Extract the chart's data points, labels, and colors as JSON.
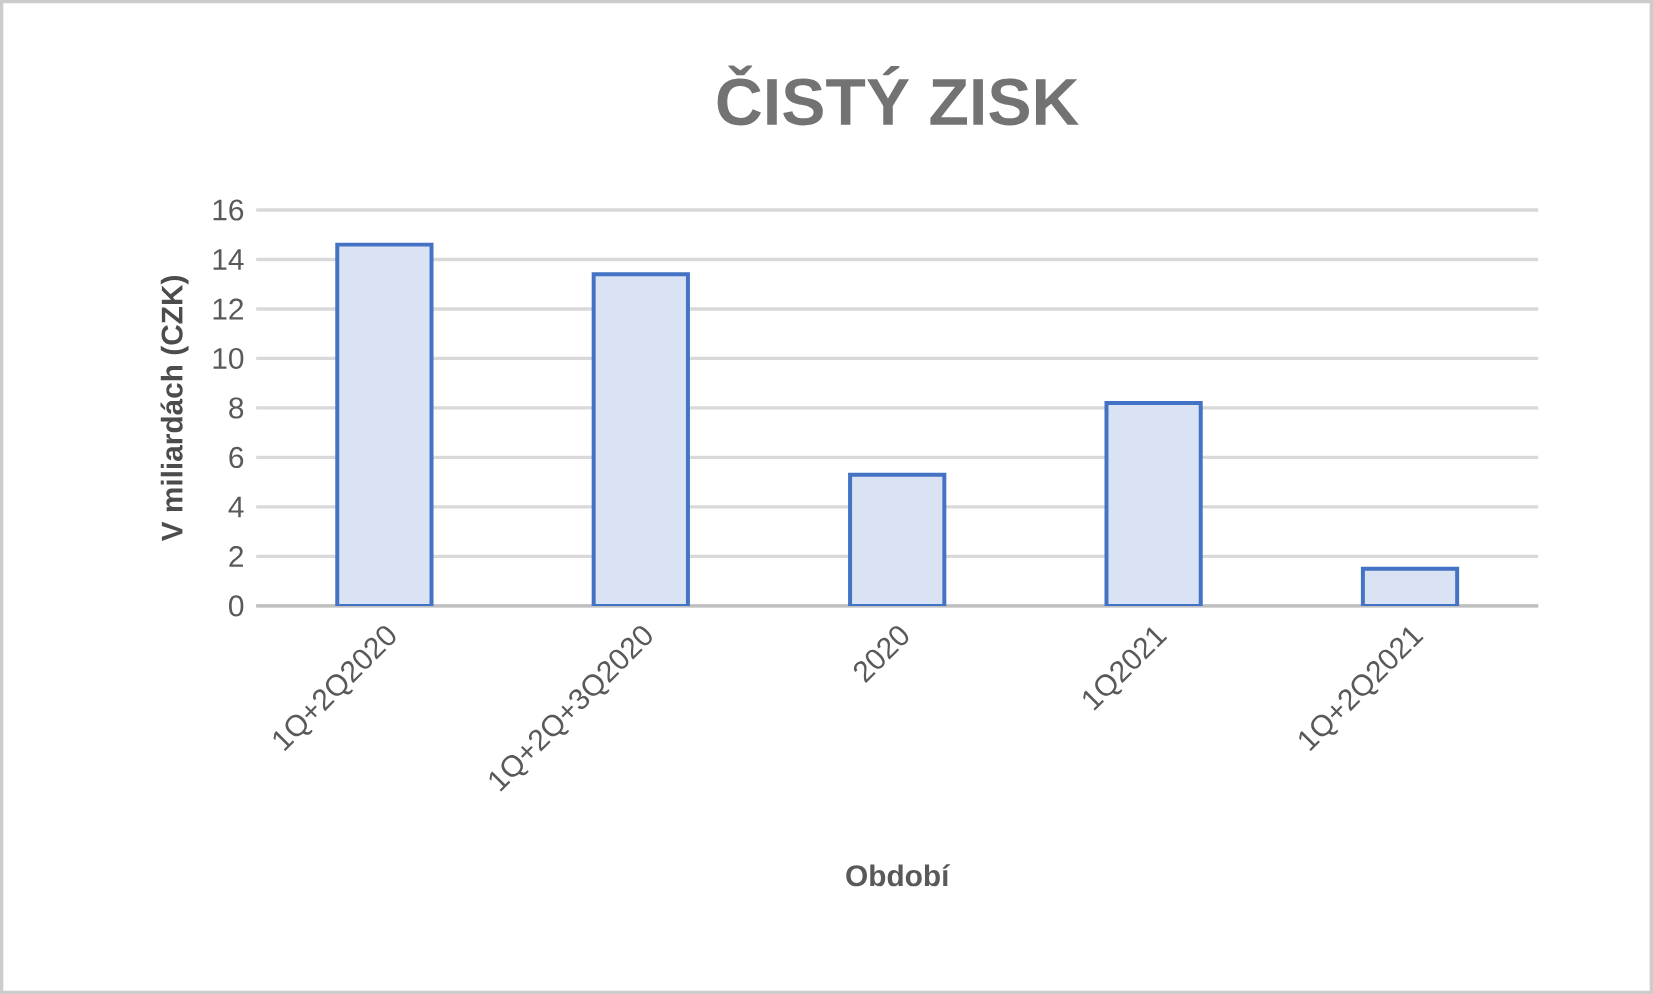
{
  "chart_data": {
    "type": "bar",
    "title": "ČISTÝ ZISK",
    "xlabel": "Období",
    "ylabel": "V miliardách (CZK)",
    "categories": [
      "1Q+2Q2020",
      "1Q+2Q+3Q2020",
      "2020",
      "1Q2021",
      "1Q+2Q2021"
    ],
    "values": [
      14.6,
      13.4,
      5.3,
      8.2,
      1.5
    ],
    "color": "#dae3f3",
    "ylim": [
      0,
      16
    ],
    "yticks": [
      0,
      2,
      4,
      6,
      8,
      10,
      12,
      14,
      16
    ],
    "grid": "y"
  }
}
